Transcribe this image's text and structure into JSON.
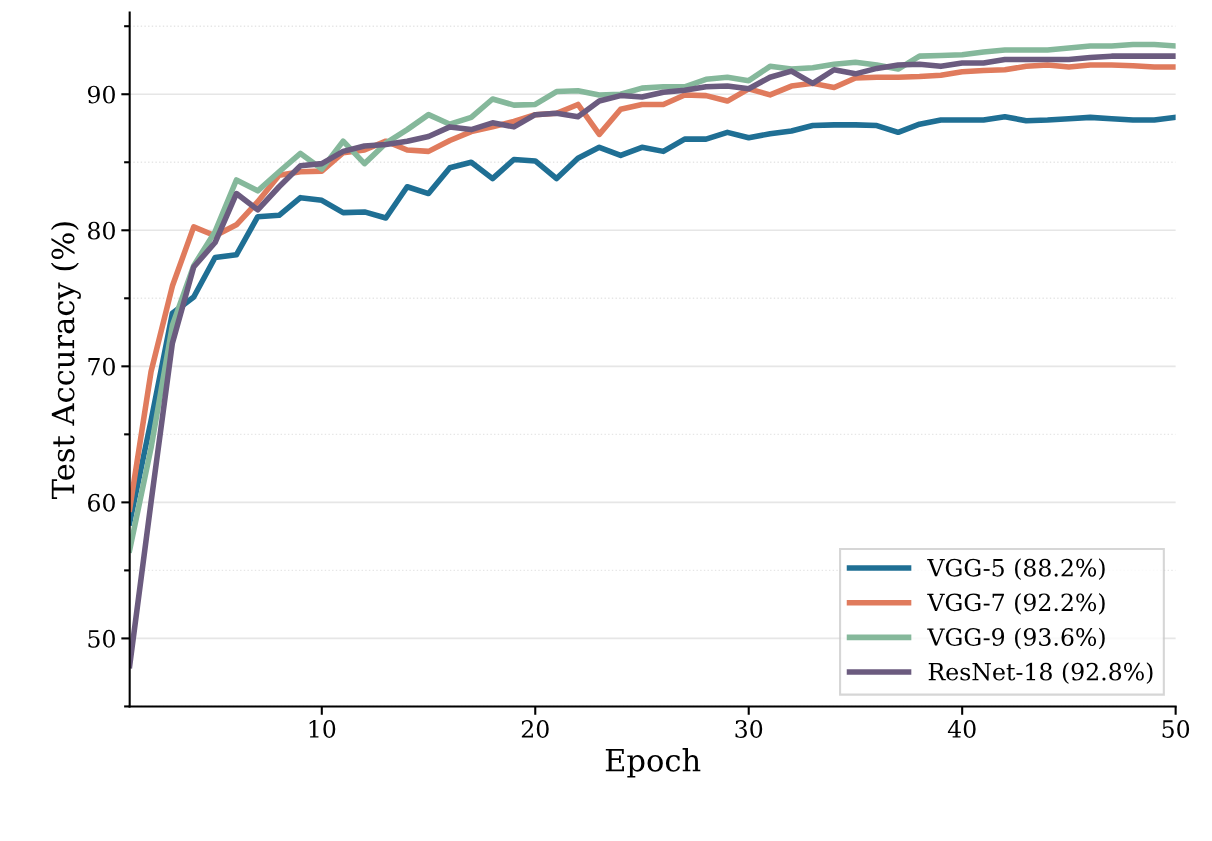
{
  "chart_data": {
    "type": "line",
    "xlabel": "Epoch",
    "ylabel": "Test Accuracy (%)",
    "x": [
      1,
      2,
      3,
      4,
      5,
      6,
      7,
      8,
      9,
      10,
      11,
      12,
      13,
      14,
      15,
      16,
      17,
      18,
      19,
      20,
      21,
      22,
      23,
      24,
      25,
      26,
      27,
      28,
      29,
      30,
      31,
      32,
      33,
      34,
      35,
      36,
      37,
      38,
      39,
      40,
      41,
      42,
      43,
      44,
      45,
      46,
      47,
      48,
      49,
      50
    ],
    "series": [
      {
        "name": "VGG-5 (88.2%)",
        "color": "#1f6f94",
        "values": [
          58.5,
          66,
          73.9,
          75.1,
          78.0,
          78.2,
          81.0,
          81.1,
          82.4,
          82.2,
          81.3,
          81.35,
          80.9,
          83.2,
          82.7,
          84.6,
          85.0,
          83.8,
          85.2,
          85.1,
          83.8,
          85.3,
          86.1,
          85.5,
          86.1,
          85.8,
          86.7,
          86.7,
          87.2,
          86.8,
          87.1,
          87.3,
          87.7,
          87.75,
          87.75,
          87.7,
          87.2,
          87.8,
          88.1,
          88.1,
          88.1,
          88.35,
          88.05,
          88.1,
          88.2,
          88.3,
          88.2,
          88.1,
          88.1,
          88.3
        ]
      },
      {
        "name": "VGG-7 (92.2%)",
        "color": "#e07b5d",
        "values": [
          59.5,
          69.6,
          75.9,
          80.25,
          79.6,
          80.4,
          82.1,
          84.05,
          84.3,
          84.35,
          85.7,
          85.9,
          86.55,
          85.9,
          85.8,
          86.6,
          87.25,
          87.6,
          88.0,
          88.5,
          88.6,
          89.25,
          87.05,
          88.9,
          89.25,
          89.25,
          89.95,
          89.9,
          89.5,
          90.4,
          89.95,
          90.6,
          90.8,
          90.5,
          91.2,
          91.25,
          91.25,
          91.3,
          91.4,
          91.65,
          91.75,
          91.8,
          92.05,
          92.15,
          92.0,
          92.15,
          92.15,
          92.1,
          92.0,
          92.0
        ]
      },
      {
        "name": "VGG-9 (93.6%)",
        "color": "#85b89b",
        "values": [
          56.5,
          64,
          73,
          77.4,
          79.9,
          83.7,
          82.9,
          84.3,
          85.65,
          84.5,
          86.55,
          84.9,
          86.4,
          87.4,
          88.5,
          87.8,
          88.3,
          89.65,
          89.2,
          89.25,
          90.2,
          90.25,
          89.95,
          90.0,
          90.45,
          90.55,
          90.55,
          91.1,
          91.25,
          91.0,
          92.05,
          91.85,
          91.95,
          92.2,
          92.35,
          92.15,
          91.85,
          92.8,
          92.85,
          92.9,
          93.1,
          93.25,
          93.25,
          93.25,
          93.4,
          93.55,
          93.55,
          93.65,
          93.65,
          93.55
        ]
      },
      {
        "name": "ResNet-18 (92.8%)",
        "color": "#6b5b7f",
        "values": [
          48,
          60,
          71.7,
          77.3,
          79.1,
          82.7,
          81.5,
          83.2,
          84.75,
          84.9,
          85.8,
          86.2,
          86.3,
          86.55,
          86.9,
          87.6,
          87.4,
          87.9,
          87.6,
          88.5,
          88.6,
          88.35,
          89.5,
          89.9,
          89.8,
          90.15,
          90.3,
          90.55,
          90.6,
          90.4,
          91.25,
          91.7,
          90.8,
          91.8,
          91.5,
          91.9,
          92.15,
          92.2,
          92.05,
          92.3,
          92.3,
          92.55,
          92.55,
          92.55,
          92.55,
          92.7,
          92.8,
          92.8,
          92.8,
          92.8
        ]
      }
    ],
    "xlim": [
      1,
      50
    ],
    "xticks": [
      10,
      20,
      30,
      40,
      50
    ],
    "ylim": [
      45,
      96
    ],
    "yticks": [
      {
        "value": 45,
        "label": null
      },
      50,
      {
        "value": 55,
        "label": null
      },
      60,
      {
        "value": 65,
        "label": null
      },
      70,
      {
        "value": 75,
        "label": null
      },
      80,
      {
        "value": 85,
        "label": null
      },
      90,
      {
        "value": 95,
        "label": null
      }
    ],
    "grid": "y",
    "legend": "bottom right",
    "line_style": "solid",
    "marker": "none"
  }
}
